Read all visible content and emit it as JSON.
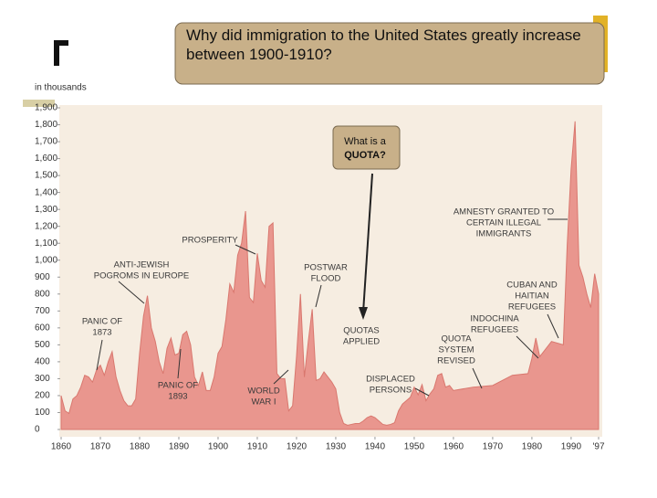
{
  "question": "Why did immigration to the United States greatly increase between 1900-1910?",
  "callout": [
    "What is a",
    "QUOTA?"
  ],
  "chart_data": {
    "type": "area",
    "ylabel": "in thousands",
    "color": "#e9968e",
    "x": [
      1860,
      1861,
      1862,
      1863,
      1864,
      1865,
      1866,
      1867,
      1868,
      1869,
      1870,
      1871,
      1872,
      1873,
      1874,
      1875,
      1876,
      1877,
      1878,
      1879,
      1880,
      1881,
      1882,
      1883,
      1884,
      1885,
      1886,
      1887,
      1888,
      1889,
      1890,
      1891,
      1892,
      1893,
      1894,
      1895,
      1896,
      1897,
      1898,
      1899,
      1900,
      1901,
      1902,
      1903,
      1904,
      1905,
      1906,
      1907,
      1908,
      1909,
      1910,
      1911,
      1912,
      1913,
      1914,
      1915,
      1916,
      1917,
      1918,
      1919,
      1920,
      1921,
      1922,
      1923,
      1924,
      1925,
      1926,
      1927,
      1928,
      1929,
      1930,
      1931,
      1932,
      1933,
      1934,
      1935,
      1936,
      1937,
      1938,
      1939,
      1940,
      1941,
      1942,
      1943,
      1944,
      1945,
      1946,
      1947,
      1948,
      1949,
      1950,
      1951,
      1952,
      1953,
      1954,
      1955,
      1956,
      1957,
      1958,
      1959,
      1960,
      1965,
      1970,
      1975,
      1979,
      1980,
      1981,
      1982,
      1985,
      1988,
      1989,
      1990,
      1991,
      1992,
      1993,
      1994,
      1995,
      1996,
      1997
    ],
    "values": [
      200,
      110,
      95,
      180,
      200,
      250,
      320,
      310,
      280,
      350,
      380,
      320,
      400,
      460,
      310,
      230,
      170,
      140,
      140,
      180,
      450,
      670,
      790,
      600,
      520,
      400,
      330,
      480,
      540,
      440,
      450,
      560,
      580,
      500,
      310,
      260,
      340,
      230,
      230,
      310,
      450,
      490,
      650,
      860,
      810,
      1030,
      1100,
      1290,
      780,
      750,
      1040,
      880,
      840,
      1200,
      1220,
      330,
      300,
      300,
      110,
      140,
      430,
      800,
      310,
      520,
      710,
      290,
      300,
      340,
      310,
      280,
      240,
      100,
      35,
      25,
      30,
      35,
      35,
      50,
      70,
      80,
      70,
      50,
      30,
      25,
      30,
      40,
      110,
      150,
      170,
      190,
      250,
      205,
      265,
      170,
      210,
      240,
      320,
      330,
      250,
      260,
      230,
      250,
      260,
      320,
      330,
      420,
      540,
      430,
      520,
      500,
      1090,
      1540,
      1820,
      970,
      900,
      800,
      720,
      920,
      800
    ],
    "xlim": [
      1860,
      1997
    ],
    "xticks": [
      1860,
      1870,
      1880,
      1890,
      1900,
      1910,
      1920,
      1930,
      1940,
      1950,
      1960,
      1970,
      1980,
      1990,
      {
        "value": 1997,
        "label": "'97"
      }
    ],
    "ylim": [
      0,
      1900
    ],
    "yticks": [
      0,
      100,
      200,
      300,
      400,
      500,
      600,
      700,
      800,
      900,
      {
        "value": 1000,
        "label": "1,000"
      },
      {
        "value": 1100,
        "label": "1,100"
      },
      {
        "value": 1200,
        "label": "1,200"
      },
      {
        "value": 1300,
        "label": "1,300"
      },
      {
        "value": 1400,
        "label": "1,400"
      },
      {
        "value": 1500,
        "label": "1,500"
      },
      {
        "value": 1600,
        "label": "1,600"
      },
      {
        "value": 1700,
        "label": "1,700"
      },
      {
        "value": 1800,
        "label": "1,800"
      },
      {
        "value": 1900,
        "label": "1,900"
      }
    ],
    "annotations": [
      [
        "PROSPERITY"
      ],
      [
        "ANTI-JEWISH",
        "POGROMS IN EUROPE"
      ],
      [
        "PANIC OF",
        "1873"
      ],
      [
        "PANIC OF",
        "1893"
      ],
      [
        "WORLD",
        "WAR I"
      ],
      [
        "POSTWAR",
        "FLOOD"
      ],
      [
        "QUOTAS",
        "APPLIED"
      ],
      [
        "DISPLACED",
        "PERSONS"
      ],
      [
        "QUOTA",
        "SYSTEM",
        "REVISED"
      ],
      [
        "AMNESTY GRANTED TO",
        "CERTAIN ILLEGAL",
        "IMMIGRANTS"
      ],
      [
        "CUBAN AND",
        "HAITIAN",
        "REFUGEES"
      ],
      [
        "INDOCHINA",
        "REFUGEES"
      ]
    ]
  }
}
